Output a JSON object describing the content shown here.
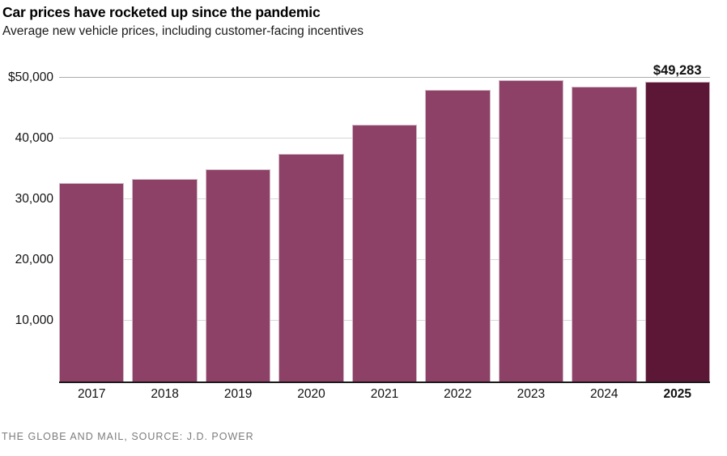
{
  "header": {
    "title": "Car prices have rocketed up since the pandemic",
    "subtitle": "Average new vehicle prices, including customer-facing incentives"
  },
  "footer": {
    "source": "THE GLOBE AND MAIL, SOURCE: J.D. POWER"
  },
  "chart_data": {
    "type": "bar",
    "title": "Car prices have rocketed up since the pandemic",
    "subtitle": "Average new vehicle prices, including customer-facing incentives",
    "categories": [
      "2017",
      "2018",
      "2019",
      "2020",
      "2021",
      "2022",
      "2023",
      "2024",
      "2025"
    ],
    "values": [
      32700,
      33300,
      35000,
      37500,
      42300,
      48000,
      49600,
      48600,
      49283
    ],
    "xlabel": "",
    "ylabel": "",
    "ylim": [
      0,
      50000
    ],
    "yticks": [
      {
        "value": 10000,
        "label": "10,000"
      },
      {
        "value": 20000,
        "label": "20,000"
      },
      {
        "value": 30000,
        "label": "30,000"
      },
      {
        "value": 40000,
        "label": "40,000"
      },
      {
        "value": 50000,
        "label": "$50,000"
      }
    ],
    "grid": "horizontal",
    "legend": "none",
    "highlight_category": "2025",
    "annotation": {
      "category": "2025",
      "text": "$49,283"
    },
    "colors": {
      "bar": "#8e4166",
      "bar_stroke": "#cfb9c6",
      "highlight_bar": "#5c1737",
      "highlight_stroke": "#c4aeba",
      "gridline": "#d7d7d7",
      "top_gridline": "#ababab",
      "axis": "#1a1a1a",
      "text": "#111111",
      "source_text": "#7c7c7c"
    }
  }
}
